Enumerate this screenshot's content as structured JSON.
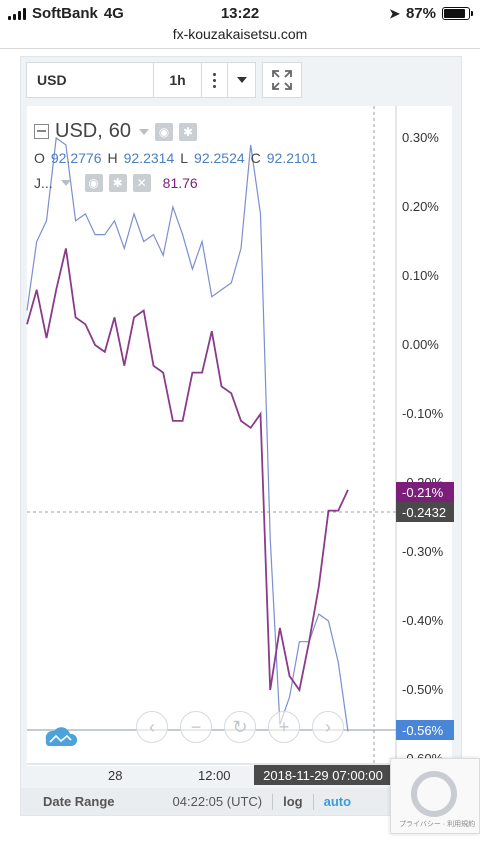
{
  "status_bar": {
    "carrier": "SoftBank",
    "network": "4G",
    "time": "13:22",
    "battery": "87%"
  },
  "browser": {
    "url": "fx-kouzakaisetsu.com"
  },
  "toolbar": {
    "symbol": "USD",
    "interval": "1h"
  },
  "legend": {
    "symbol": "USD",
    "period": "60",
    "ohlc": [
      {
        "label": "O",
        "value": "92.2776"
      },
      {
        "label": "H",
        "value": "92.2314"
      },
      {
        "label": "L",
        "value": "92.2524"
      },
      {
        "label": "C",
        "value": "92.2101"
      }
    ],
    "indicator_name": "J...",
    "indicator_value": "81.76"
  },
  "axis": {
    "y_ticks": [
      "0.30%",
      "0.20%",
      "0.10%",
      "0.00%",
      "-0.10%",
      "-0.20%",
      "-0.30%",
      "-0.40%",
      "-0.50%",
      "-0.60%"
    ],
    "x_ticks": [
      "28",
      "12:00"
    ],
    "price_tags": [
      {
        "text": "-0.21%",
        "color": "#7b1f7b"
      },
      {
        "text": "-0.2432",
        "color": "#4a4a4a"
      },
      {
        "text": "-0.56%",
        "color": "#4a86d8"
      }
    ],
    "crosshair_time": "2018-11-29 07:00:00"
  },
  "bottom_bar": {
    "date_range": "Date Range",
    "time": "04:22:05 (UTC)",
    "log": "log",
    "auto": "auto"
  },
  "recaptcha": {
    "text": "プライバシー · 利用規約"
  },
  "chart_data": {
    "type": "line",
    "ylim": [
      -0.6,
      0.33
    ],
    "series": [
      {
        "color": "#7b8fd0",
        "values": [
          0.05,
          0.15,
          0.18,
          0.3,
          0.29,
          0.18,
          0.19,
          0.16,
          0.16,
          0.18,
          0.14,
          0.19,
          0.15,
          0.16,
          0.13,
          0.2,
          0.16,
          0.11,
          0.15,
          0.07,
          0.08,
          0.09,
          0.14,
          0.29,
          0.19,
          -0.28,
          -0.55,
          -0.51,
          -0.43,
          -0.43,
          -0.39,
          -0.4,
          -0.46,
          -0.56
        ]
      },
      {
        "color": "#8a3b8a",
        "values": [
          0.03,
          0.08,
          0.01,
          0.08,
          0.14,
          0.04,
          0.03,
          0.0,
          -0.01,
          0.04,
          -0.03,
          0.04,
          0.05,
          -0.03,
          -0.04,
          -0.11,
          -0.11,
          -0.04,
          -0.04,
          0.02,
          -0.06,
          -0.07,
          -0.11,
          -0.12,
          -0.1,
          -0.5,
          -0.41,
          -0.48,
          -0.5,
          -0.43,
          -0.35,
          -0.24,
          -0.24,
          -0.21
        ]
      }
    ]
  }
}
